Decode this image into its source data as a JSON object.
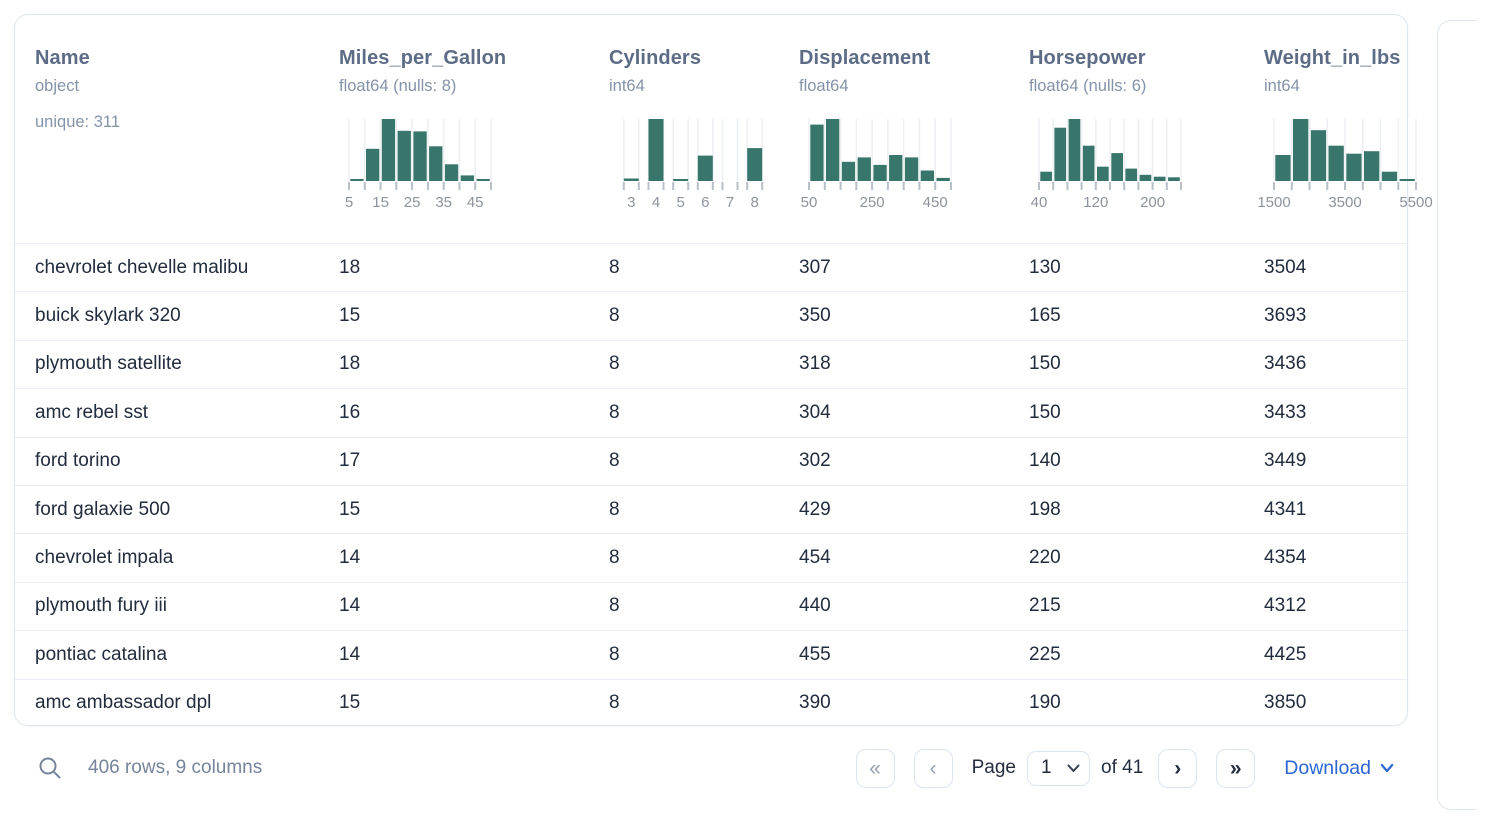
{
  "table": {
    "columns": [
      {
        "name": "Name",
        "dtype": "object",
        "meta": "unique: 311"
      },
      {
        "name": "Miles_per_Gallon",
        "dtype": "float64 (nulls: 8)",
        "meta": ""
      },
      {
        "name": "Cylinders",
        "dtype": "int64",
        "meta": ""
      },
      {
        "name": "Displacement",
        "dtype": "float64",
        "meta": ""
      },
      {
        "name": "Horsepower",
        "dtype": "float64 (nulls: 6)",
        "meta": ""
      },
      {
        "name": "Weight_in_lbs",
        "dtype": "int64",
        "meta": ""
      }
    ],
    "rows": [
      [
        "chevrolet chevelle malibu",
        "18",
        "8",
        "307",
        "130",
        "3504"
      ],
      [
        "buick skylark 320",
        "15",
        "8",
        "350",
        "165",
        "3693"
      ],
      [
        "plymouth satellite",
        "18",
        "8",
        "318",
        "150",
        "3436"
      ],
      [
        "amc rebel sst",
        "16",
        "8",
        "304",
        "150",
        "3433"
      ],
      [
        "ford torino",
        "17",
        "8",
        "302",
        "140",
        "3449"
      ],
      [
        "ford galaxie 500",
        "15",
        "8",
        "429",
        "198",
        "4341"
      ],
      [
        "chevrolet impala",
        "14",
        "8",
        "454",
        "220",
        "4354"
      ],
      [
        "plymouth fury iii",
        "14",
        "8",
        "440",
        "215",
        "4312"
      ],
      [
        "pontiac catalina",
        "14",
        "8",
        "455",
        "225",
        "4425"
      ],
      [
        "amc ambassador dpl",
        "15",
        "8",
        "390",
        "190",
        "3850"
      ]
    ]
  },
  "chart_data": [
    {
      "type": "bar",
      "column": "Miles_per_Gallon",
      "layout": "continuous",
      "bin_edges": [
        5,
        10,
        15,
        20,
        25,
        30,
        35,
        40,
        45,
        50
      ],
      "relative_heights": [
        0.03,
        0.52,
        1.0,
        0.81,
        0.8,
        0.56,
        0.27,
        0.09,
        0.03
      ],
      "tick_labels": [
        "5",
        "15",
        "25",
        "35",
        "45"
      ],
      "tick_label_edges": [
        0,
        2,
        4,
        6,
        8
      ]
    },
    {
      "type": "bar",
      "column": "Cylinders",
      "layout": "categorical",
      "categories": [
        "3",
        "4",
        "5",
        "6",
        "7",
        "8"
      ],
      "relative_heights": [
        0.04,
        1.0,
        0.03,
        0.41,
        0,
        0.53
      ],
      "tick_labels": [
        "3",
        "4",
        "5",
        "6",
        "7",
        "8"
      ]
    },
    {
      "type": "bar",
      "column": "Displacement",
      "layout": "continuous",
      "bin_edges": [
        50,
        100,
        150,
        200,
        250,
        300,
        350,
        400,
        450,
        500
      ],
      "relative_heights": [
        0.91,
        1.0,
        0.31,
        0.38,
        0.26,
        0.42,
        0.38,
        0.17,
        0.05
      ],
      "tick_labels": [
        "50",
        "250",
        "450"
      ],
      "tick_label_edges": [
        0,
        4,
        8
      ]
    },
    {
      "type": "bar",
      "column": "Horsepower",
      "layout": "continuous",
      "bin_edges": [
        40,
        60,
        80,
        100,
        120,
        140,
        160,
        180,
        200,
        220,
        240
      ],
      "relative_heights": [
        0.15,
        0.86,
        1.0,
        0.57,
        0.23,
        0.45,
        0.2,
        0.1,
        0.07,
        0.06
      ],
      "tick_labels": [
        "40",
        "120",
        "200"
      ],
      "tick_label_edges": [
        0,
        4,
        8
      ]
    },
    {
      "type": "bar",
      "column": "Weight_in_lbs",
      "layout": "continuous",
      "bin_edges": [
        1500,
        2000,
        2500,
        3000,
        3500,
        4000,
        4500,
        5000,
        5500
      ],
      "relative_heights": [
        0.42,
        1.0,
        0.82,
        0.57,
        0.44,
        0.48,
        0.15,
        0.03
      ],
      "tick_labels": [
        "1500",
        "3500",
        "5500"
      ],
      "tick_label_edges": [
        0,
        4,
        8
      ]
    }
  ],
  "footer": {
    "status": "406 rows, 9 columns",
    "pagination": {
      "first_label": "«",
      "prev_label": "‹",
      "page_label": "Page",
      "page_value": "1",
      "total_label": "of 41",
      "next_label": "›",
      "last_label": "»"
    },
    "download_label": "Download"
  },
  "colors": {
    "bar": "#38756a",
    "accent_blue": "#2c66d4",
    "grid": "#eceff2",
    "tick": "#b9c0ca",
    "tick_label": "#8d939d"
  }
}
